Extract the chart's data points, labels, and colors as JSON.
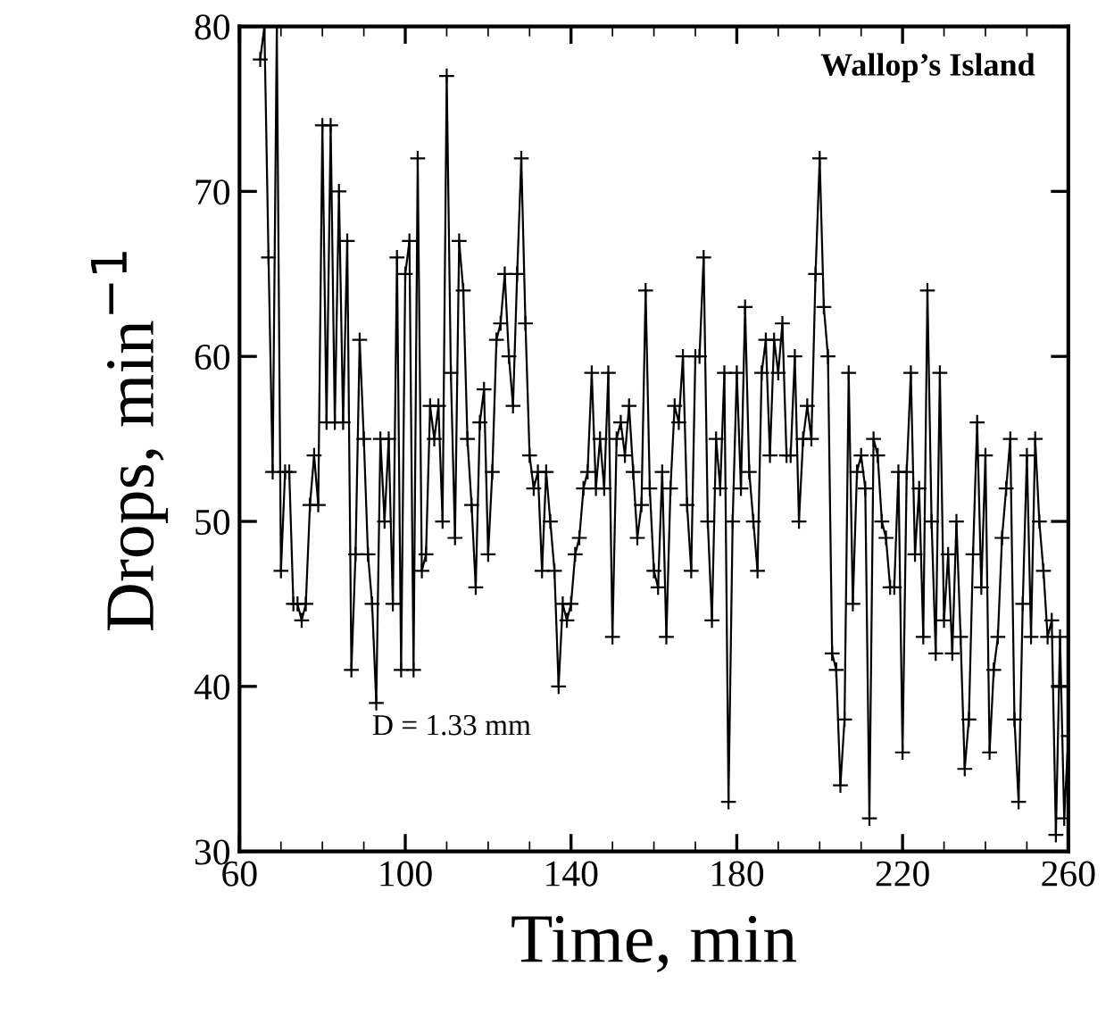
{
  "chart_data": {
    "type": "line",
    "xlabel": "Time, min",
    "ylabel": "Drops, min$^{−1}$",
    "annotations": [
      "Wallop’s Island",
      "D = 1.33 mm"
    ],
    "marker": "cross",
    "line_style": "solid",
    "grid": false,
    "xlim": [
      60,
      260
    ],
    "xticks": [
      60,
      100,
      140,
      180,
      220,
      260
    ],
    "ylim": [
      30,
      80
    ],
    "yticks": [
      30,
      40,
      50,
      60,
      70,
      80
    ],
    "series": [
      {
        "color": "#000000",
        "x": [
          65,
          66,
          67,
          68,
          69,
          70,
          71,
          72,
          73,
          74,
          75,
          76,
          77,
          78,
          79,
          80,
          81,
          82,
          83,
          84,
          85,
          86,
          87,
          88,
          89,
          90,
          91,
          92,
          93,
          94,
          95,
          96,
          97,
          98,
          99,
          100,
          101,
          102,
          103,
          104,
          105,
          106,
          107,
          108,
          109,
          110,
          111,
          112,
          113,
          114,
          115,
          116,
          117,
          118,
          119,
          120,
          121,
          122,
          123,
          124,
          125,
          126,
          127,
          128,
          129,
          130,
          131,
          132,
          133,
          134,
          135,
          136,
          137,
          138,
          139,
          140,
          141,
          142,
          143,
          144,
          145,
          146,
          147,
          148,
          149,
          150,
          151,
          152,
          153,
          154,
          155,
          156,
          157,
          158,
          159,
          160,
          161,
          162,
          163,
          164,
          165,
          166,
          167,
          168,
          169,
          170,
          171,
          172,
          173,
          174,
          175,
          176,
          177,
          178,
          179,
          180,
          181,
          182,
          183,
          184,
          185,
          186,
          187,
          188,
          189,
          190,
          191,
          192,
          193,
          194,
          195,
          196,
          197,
          198,
          199,
          200,
          201,
          202,
          203,
          204,
          205,
          206,
          207,
          208,
          209,
          210,
          211,
          212,
          213,
          214,
          215,
          216,
          217,
          218,
          219,
          220,
          221,
          222,
          223,
          224,
          225,
          226,
          227,
          228,
          229,
          230,
          231,
          232,
          233,
          234,
          235,
          236,
          237,
          238,
          239,
          240,
          241,
          242,
          243,
          244,
          245,
          246,
          247,
          248,
          249,
          250,
          251,
          252,
          253,
          254,
          255,
          256,
          257,
          258,
          259,
          260
        ],
        "values": [
          78,
          80,
          66,
          53,
          80,
          47,
          53,
          53,
          45,
          45,
          44,
          45,
          51,
          54,
          51,
          74,
          56,
          74,
          56,
          70,
          56,
          67,
          41,
          48,
          61,
          55,
          48,
          45,
          39,
          55,
          50,
          55,
          45,
          66,
          41,
          65,
          67,
          41,
          72,
          47,
          48,
          57,
          55,
          57,
          50,
          77,
          59,
          49,
          67,
          64,
          55,
          51,
          46,
          56,
          58,
          48,
          53,
          61,
          62,
          65,
          60,
          57,
          65,
          72,
          62,
          54,
          52,
          53,
          47,
          53,
          50,
          47,
          40,
          45,
          44,
          45,
          48,
          49,
          52,
          53,
          59,
          52,
          55,
          52,
          59,
          43,
          55,
          56,
          54,
          57,
          53,
          49,
          51,
          64,
          52,
          47,
          46,
          53,
          43,
          52,
          57,
          56,
          60,
          51,
          47,
          60,
          60,
          66,
          50,
          44,
          55,
          52,
          59,
          33,
          50,
          59,
          52,
          63,
          53,
          50,
          47,
          59,
          61,
          54,
          61,
          59,
          62,
          54,
          54,
          60,
          50,
          55,
          57,
          55,
          65,
          72,
          63,
          60,
          42,
          41,
          34,
          38,
          59,
          45,
          53,
          54,
          52,
          32,
          55,
          54,
          50,
          49,
          46,
          46,
          53,
          36,
          53,
          59,
          48,
          52,
          43,
          64,
          50,
          42,
          59,
          44,
          48,
          42,
          50,
          43,
          35,
          38,
          48,
          56,
          46,
          54,
          36,
          41,
          43,
          49,
          52,
          55,
          38,
          33,
          45,
          54,
          43,
          55,
          50,
          47,
          43,
          44,
          31,
          43,
          32,
          37
        ]
      }
    ]
  }
}
